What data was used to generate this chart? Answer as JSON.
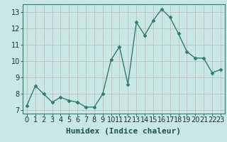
{
  "x": [
    0,
    1,
    2,
    3,
    4,
    5,
    6,
    7,
    8,
    9,
    10,
    11,
    12,
    13,
    14,
    15,
    16,
    17,
    18,
    19,
    20,
    21,
    22,
    23
  ],
  "y": [
    7.3,
    8.5,
    8.0,
    7.5,
    7.8,
    7.6,
    7.5,
    7.2,
    7.2,
    8.0,
    10.1,
    10.9,
    8.6,
    12.4,
    11.6,
    12.5,
    13.2,
    12.7,
    11.7,
    10.6,
    10.2,
    10.2,
    9.3,
    9.5
  ],
  "xlabel": "Humidex (Indice chaleur)",
  "xlim": [
    -0.5,
    23.5
  ],
  "ylim": [
    6.8,
    13.5
  ],
  "yticks": [
    7,
    8,
    9,
    10,
    11,
    12,
    13
  ],
  "xticks": [
    0,
    1,
    2,
    3,
    4,
    5,
    6,
    7,
    8,
    9,
    10,
    11,
    12,
    13,
    14,
    15,
    16,
    17,
    18,
    19,
    20,
    21,
    22,
    23
  ],
  "line_color": "#2e7d6e",
  "marker": "D",
  "marker_size": 2.5,
  "bg_color": "#c8e8e5",
  "grid_major_color": "#c8b4b4",
  "grid_minor_color": "#ddd0d0",
  "xlabel_fontsize": 8,
  "tick_fontsize": 7,
  "line_width": 1.0,
  "spine_color": "#2e7d6e"
}
